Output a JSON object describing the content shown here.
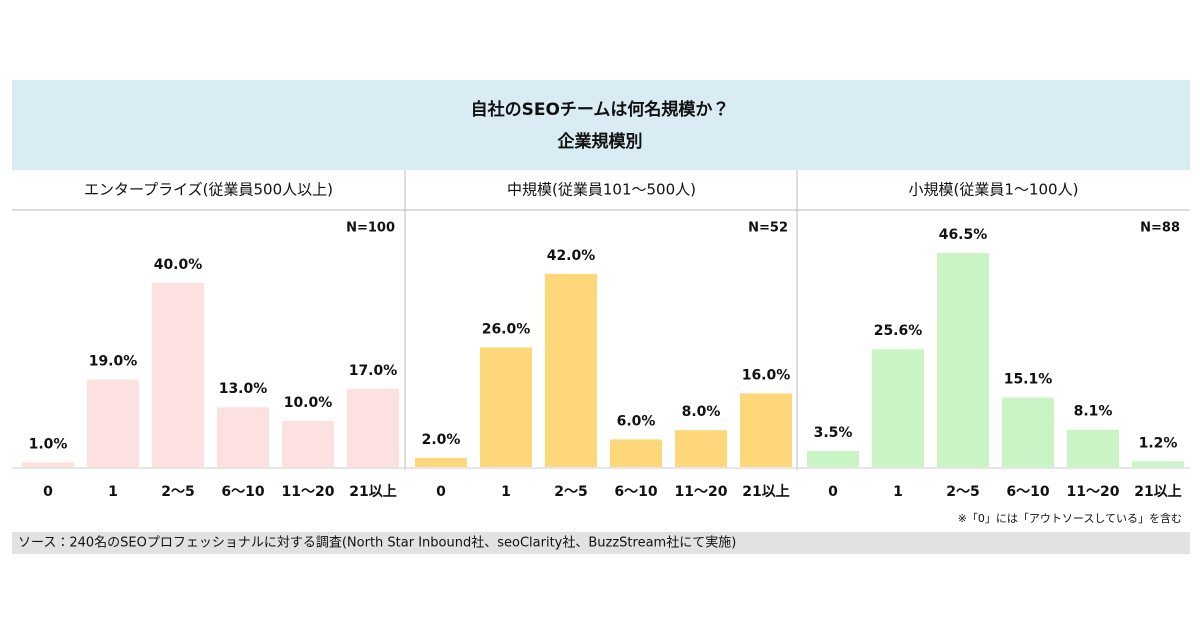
{
  "header": {
    "title": "自社のSEOチームは何名規模か？",
    "subtitle": "企業規模別"
  },
  "chart_data": [
    {
      "type": "bar",
      "title": "エンタープライズ(従業員500人以上)",
      "annotation": "N=100",
      "categories": [
        "0",
        "1",
        "2～5",
        "6～10",
        "11～20",
        "21以上"
      ],
      "values": [
        1,
        19,
        40,
        13,
        10,
        17
      ],
      "value_labels": [
        "1.0%",
        "19.0%",
        "40.0%",
        "13.0%",
        "10.0%",
        "17.0%"
      ],
      "color": "#fde1e1"
    },
    {
      "type": "bar",
      "title": "中規模(従業員101～500人)",
      "annotation": "N=52",
      "categories": [
        "0",
        "1",
        "2～5",
        "6～10",
        "11～20",
        "21以上"
      ],
      "values": [
        2,
        26,
        42,
        6,
        8,
        16
      ],
      "value_labels": [
        "2.0%",
        "26.0%",
        "42.0%",
        "6.0%",
        "8.0%",
        "16.0%"
      ],
      "color": "#fdd77a"
    },
    {
      "type": "bar",
      "title": "小規模(従業員1～100人)",
      "annotation": "N=88",
      "categories": [
        "0",
        "1",
        "2～5",
        "6～10",
        "11～20",
        "21以上"
      ],
      "values": [
        3.5,
        25.6,
        46.5,
        15.1,
        8.1,
        1.2
      ],
      "value_labels": [
        "3.5%",
        "25.6%",
        "46.5%",
        "15.1%",
        "8.1%",
        "1.2%"
      ],
      "color": "#c9f5c5"
    }
  ],
  "note": "※「0」には「アウトソースしている」を含む",
  "source": "ソース：240名のSEOプロフェッショナルに対する調査(North  Star Inbound社、seoClarity社、BuzzStream社にて実施)"
}
